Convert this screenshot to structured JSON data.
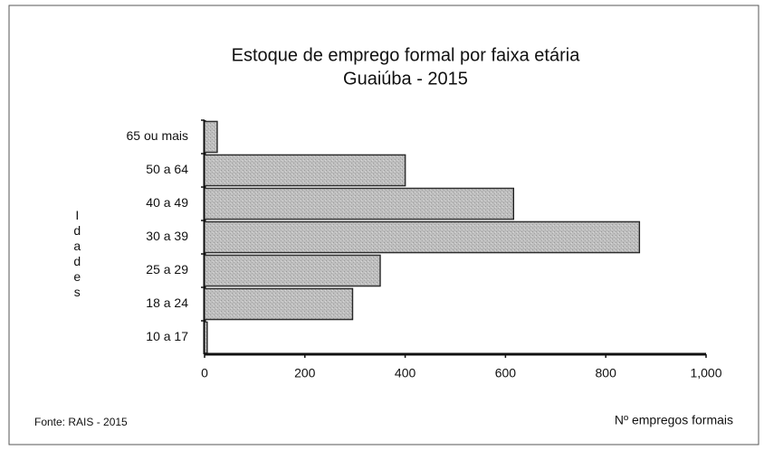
{
  "chart_data": {
    "type": "bar",
    "orientation": "horizontal",
    "title": "Estoque de emprego formal por faixa etária",
    "subtitle": "Guaiúba - 2015",
    "y_label": "Idades",
    "x_label": "Nº empregos formais",
    "source": "Fonte: RAIS - 2015",
    "categories": [
      "65 ou mais",
      "50 a 64",
      "40 a 49",
      "30 a 39",
      "25 a 29",
      "18 a 24",
      "10 a 17"
    ],
    "values": [
      25,
      400,
      616,
      867,
      350,
      295,
      5
    ],
    "color": "#b8b8b8",
    "xlim": [
      0,
      1000
    ],
    "xticks": [
      0,
      200,
      400,
      600,
      800,
      {
        "value": 1000,
        "label": "1,000"
      }
    ]
  }
}
